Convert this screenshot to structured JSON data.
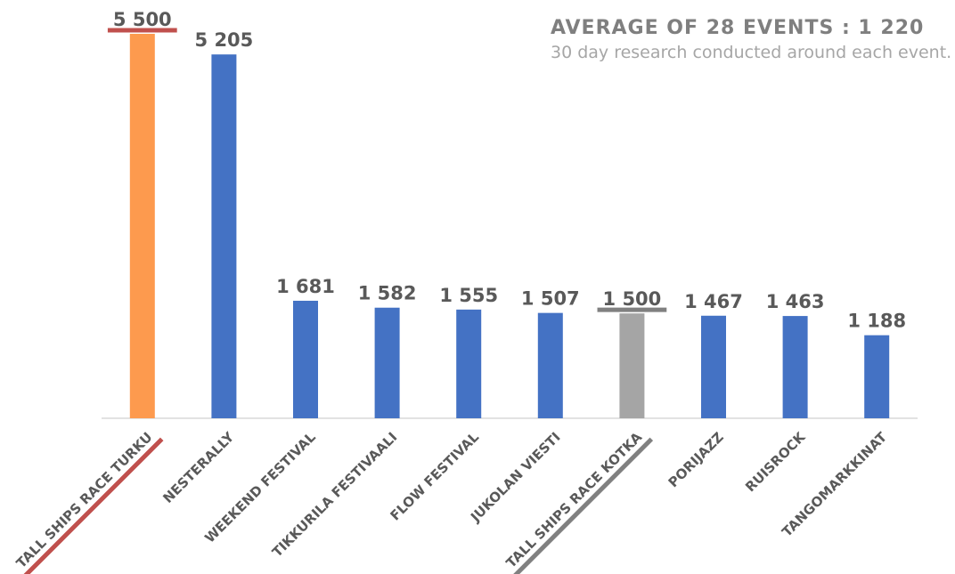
{
  "chart_data": {
    "type": "bar",
    "title": "AVERAGE OF 28 EVENTS : 1 220",
    "subtitle": "30 day research conducted around each event.",
    "categories": [
      "TALL SHIPS RACE TURKU",
      "NESTERALLY",
      "WEEKEND FESTIVAL",
      "TIKKURILA FESTIVAALI",
      "FLOW FESTIVAL",
      "JUKOLAN VIESTI",
      "TALL SHIPS RACE KOTKA",
      "PORIJAZZ",
      "RUISROCK",
      "TANGOMARKKINAT"
    ],
    "values": [
      5500,
      5205,
      1681,
      1582,
      1555,
      1507,
      1500,
      1467,
      1463,
      1188
    ],
    "value_labels": [
      "5 500",
      "5 205",
      "1 681",
      "1 582",
      "1 555",
      "1 507",
      "1 500",
      "1 467",
      "1 463",
      "1 188"
    ],
    "colors": [
      "#fd9a4e",
      "#4472c4",
      "#4472c4",
      "#4472c4",
      "#4472c4",
      "#4472c4",
      "#a5a5a5",
      "#4472c4",
      "#4472c4",
      "#4472c4"
    ],
    "underline_colors": [
      "#c0504d",
      null,
      null,
      null,
      null,
      null,
      "#808080",
      null,
      null,
      null
    ],
    "ylim": [
      0,
      5500
    ]
  }
}
